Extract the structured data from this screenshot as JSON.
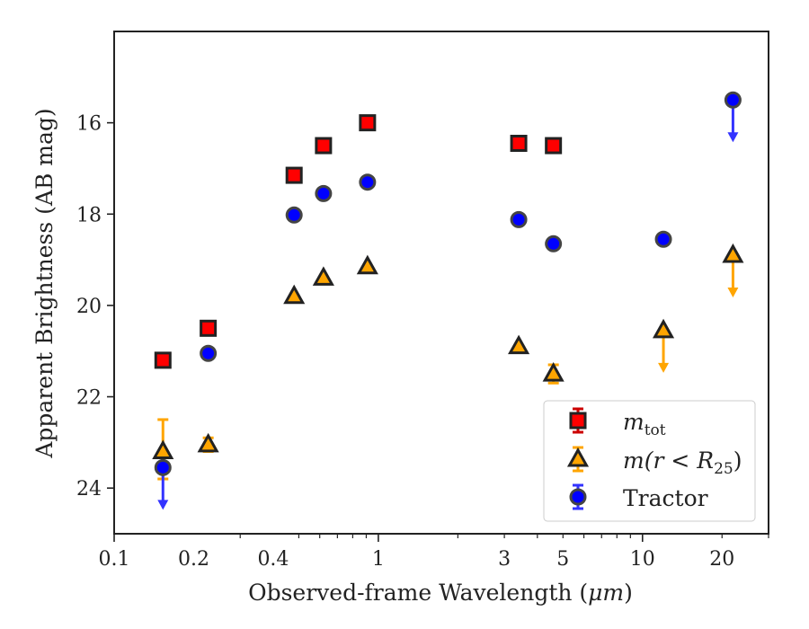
{
  "chart_data": {
    "type": "scatter",
    "xlabel_prefix": "Observed-frame Wavelength (",
    "xlabel_unit": "μm",
    "xlabel_suffix": ")",
    "ylabel": "Apparent Brightness (AB mag)",
    "xscale": "log",
    "xlim": [
      0.1,
      30
    ],
    "ylim": [
      25,
      14
    ],
    "yinverted": true,
    "grid": false,
    "legend_position": "lower-right",
    "x_ticks": [
      {
        "value": 0.1,
        "label": "0.1"
      },
      {
        "value": 0.2,
        "label": "0.2"
      },
      {
        "value": 0.4,
        "label": "0.4"
      },
      {
        "value": 1,
        "label": "1"
      },
      {
        "value": 3,
        "label": "3"
      },
      {
        "value": 5,
        "label": "5"
      },
      {
        "value": 10,
        "label": "10"
      },
      {
        "value": 20,
        "label": "20"
      }
    ],
    "y_ticks": [
      {
        "value": 16,
        "label": "16"
      },
      {
        "value": 18,
        "label": "18"
      },
      {
        "value": 20,
        "label": "20"
      },
      {
        "value": 22,
        "label": "22"
      },
      {
        "value": 24,
        "label": "24"
      }
    ],
    "series": [
      {
        "name_italic": "m",
        "name_sub": "tot",
        "marker": "square",
        "color": "#ff0000",
        "errorbar_color": "#cc0000",
        "points": [
          {
            "x": 0.153,
            "y": 21.2
          },
          {
            "x": 0.227,
            "y": 20.5
          },
          {
            "x": 0.48,
            "y": 17.15
          },
          {
            "x": 0.62,
            "y": 16.5
          },
          {
            "x": 0.91,
            "y": 16.0
          },
          {
            "x": 3.4,
            "y": 16.45
          },
          {
            "x": 4.6,
            "y": 16.5
          }
        ]
      },
      {
        "name_italic": "m(r < R",
        "name_sub": "25",
        "name_close": ")",
        "marker": "triangle",
        "color": "#ffa500",
        "errorbar_color": "#ffa500",
        "points": [
          {
            "x": 0.153,
            "y": 23.2,
            "yerr_low": 22.5,
            "yerr_high": 23.8
          },
          {
            "x": 0.227,
            "y": 23.05,
            "yerr_low": 22.9,
            "yerr_high": 23.2
          },
          {
            "x": 0.48,
            "y": 19.8
          },
          {
            "x": 0.62,
            "y": 19.4
          },
          {
            "x": 0.91,
            "y": 19.15
          },
          {
            "x": 3.4,
            "y": 20.9
          },
          {
            "x": 4.6,
            "y": 21.5,
            "yerr_low": 21.3,
            "yerr_high": 21.7
          },
          {
            "x": 12,
            "y": 20.55,
            "upper_limit": true
          },
          {
            "x": 22,
            "y": 18.9,
            "upper_limit": true
          }
        ]
      },
      {
        "name": "Tractor",
        "marker": "circle",
        "color": "#0000ff",
        "errorbar_color": "#3333ff",
        "points": [
          {
            "x": 0.153,
            "y": 23.55,
            "upper_limit": true
          },
          {
            "x": 0.227,
            "y": 21.05
          },
          {
            "x": 0.48,
            "y": 18.02
          },
          {
            "x": 0.62,
            "y": 17.55
          },
          {
            "x": 0.91,
            "y": 17.3
          },
          {
            "x": 3.4,
            "y": 18.12
          },
          {
            "x": 4.6,
            "y": 18.65
          },
          {
            "x": 12,
            "y": 18.55
          },
          {
            "x": 22,
            "y": 15.5,
            "upper_limit": true
          }
        ]
      }
    ]
  }
}
